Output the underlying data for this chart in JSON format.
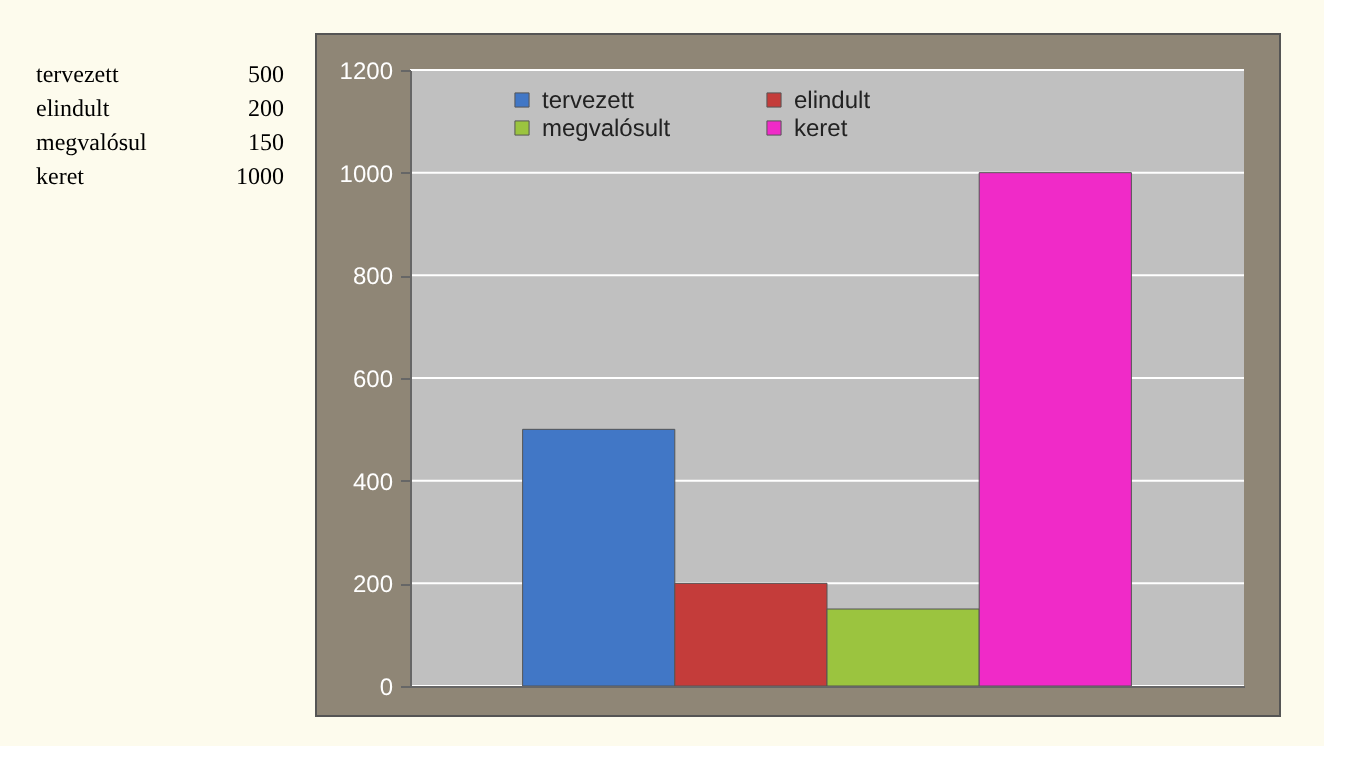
{
  "chart_data": {
    "type": "bar",
    "categories": [
      null
    ],
    "series": [
      {
        "name": "tervezett",
        "color": "#4177c6",
        "values": [
          500
        ]
      },
      {
        "name": "elindult",
        "color": "#c43c3a",
        "values": [
          200
        ]
      },
      {
        "name": "megvalósult",
        "color": "#9bc43f",
        "values": [
          150
        ]
      },
      {
        "name": "keret",
        "color": "#f02ac8",
        "values": [
          1000
        ]
      }
    ],
    "ylim": [
      0,
      1200
    ],
    "yticks": [
      0,
      200,
      400,
      600,
      800,
      1000,
      1200
    ],
    "grid": "y",
    "legend": "top left",
    "annotations": [
      "tervezett",
      "500",
      "elindult",
      "200",
      "megvalósul",
      "150",
      "keret",
      "1000"
    ]
  }
}
